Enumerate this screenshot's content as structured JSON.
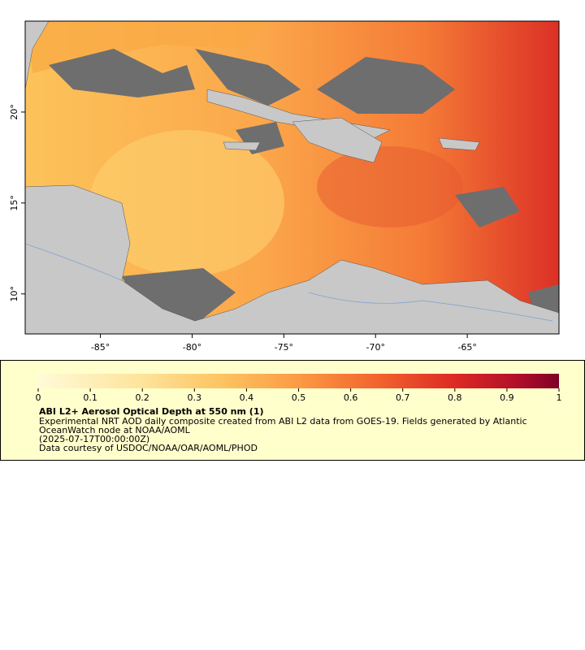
{
  "map": {
    "xlim": [
      -89.1,
      -60
    ],
    "ylim": [
      7.8,
      25
    ],
    "xticks": [
      {
        "value": -85,
        "label": "-85°"
      },
      {
        "value": -80,
        "label": "-80°"
      },
      {
        "value": -75,
        "label": "-75°"
      },
      {
        "value": -70,
        "label": "-70°"
      },
      {
        "value": -65,
        "label": "-65°"
      }
    ],
    "yticks": [
      {
        "value": 10,
        "label": "10°"
      },
      {
        "value": 15,
        "label": "15°"
      },
      {
        "value": 20,
        "label": "20°"
      }
    ]
  },
  "colorbar": {
    "lim": [
      0,
      1
    ],
    "ticks": [
      0,
      0.1,
      0.2,
      0.3,
      0.4,
      0.5,
      0.6,
      0.7,
      0.8,
      0.9,
      1
    ]
  },
  "legend": {
    "title": "ABI L2+ Aerosol Optical Depth at 550 nm (1)",
    "lines": [
      "Experimental NRT AOD daily composite created from ABI L2 data from GOES-19. Fields generated by Atlantic",
      "OceanWatch node at NOAA/AOML",
      "(2025-07-17T00:00:00Z)",
      "Data courtesy of USDOC/NOAA/OAR/AOML/PHOD"
    ]
  }
}
